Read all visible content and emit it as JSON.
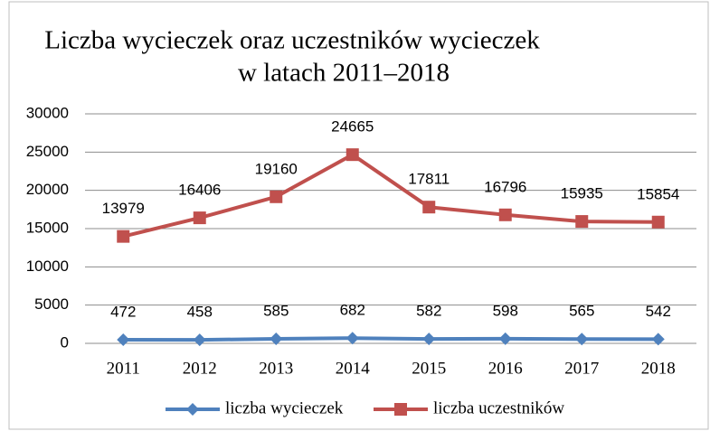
{
  "chart_data": {
    "type": "line",
    "title": [
      "Liczba wycieczek oraz uczestników wycieczek",
      "w latach 2011–2018"
    ],
    "categories": [
      "2011",
      "2012",
      "2013",
      "2014",
      "2015",
      "2016",
      "2017",
      "2018"
    ],
    "series": [
      {
        "name": "liczba wycieczek",
        "color": "#4f81bd",
        "marker": "diamond",
        "values": [
          472,
          458,
          585,
          682,
          582,
          598,
          565,
          542
        ]
      },
      {
        "name": "liczba uczestników",
        "color": "#c0504d",
        "marker": "square",
        "values": [
          13979,
          16406,
          19160,
          24665,
          17811,
          16796,
          15935,
          15854
        ]
      }
    ],
    "ylim": [
      0,
      30000
    ],
    "yticks": [
      0,
      5000,
      10000,
      15000,
      20000,
      25000,
      30000
    ],
    "grid": true,
    "legend": "bottom"
  }
}
